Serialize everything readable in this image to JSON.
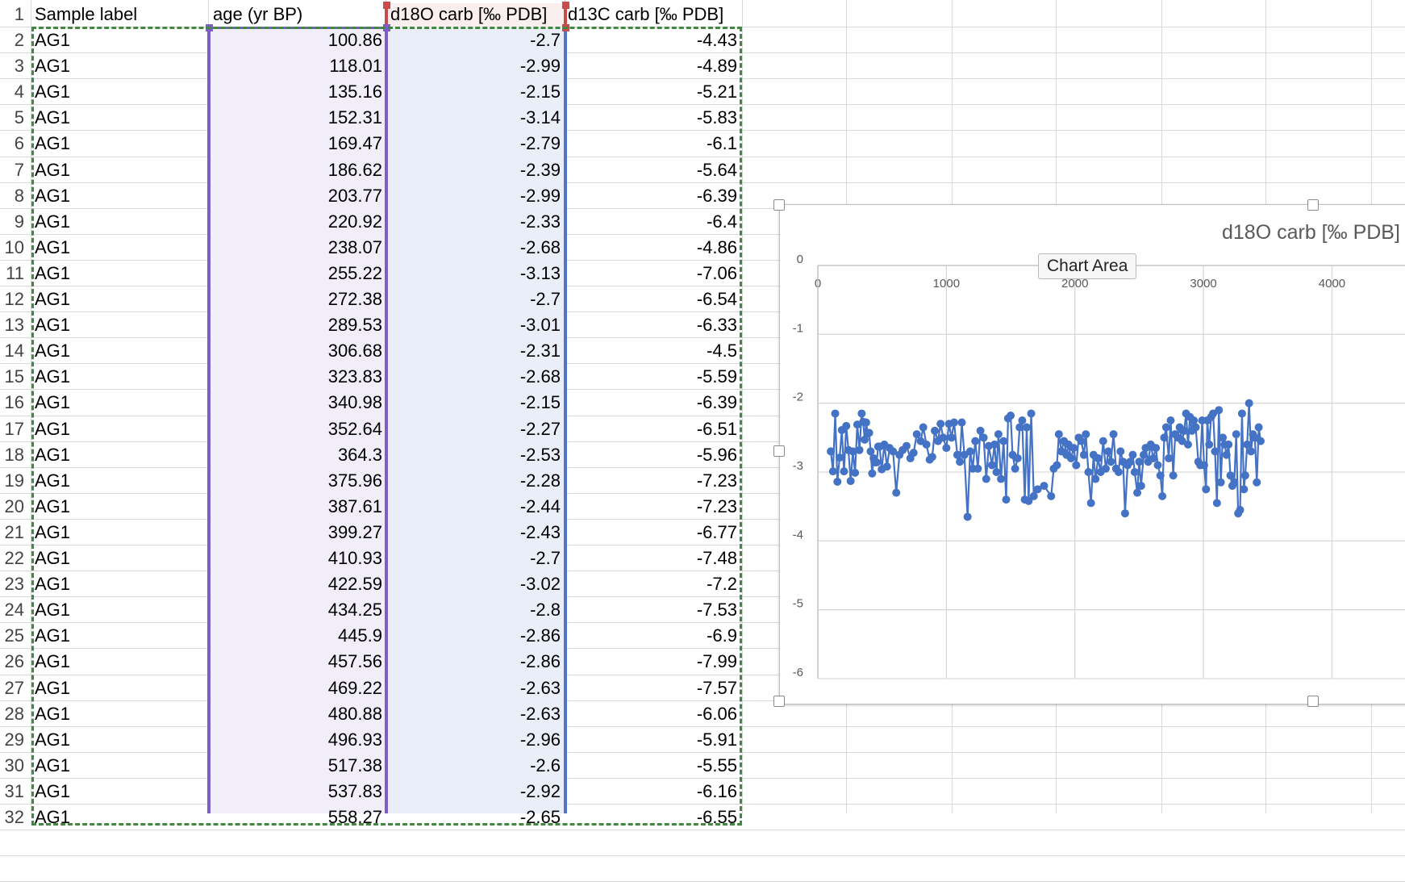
{
  "sheet": {
    "headers": {
      "a": "Sample label",
      "b": "age (yr BP)",
      "c": "d18O carb [‰ PDB]",
      "d": "d13C carb [‰ PDB]"
    },
    "rows": [
      {
        "n": "2",
        "a": "AG1",
        "b": "100.86",
        "c": "-2.7",
        "d": "-4.43"
      },
      {
        "n": "3",
        "a": "AG1",
        "b": "118.01",
        "c": "-2.99",
        "d": "-4.89"
      },
      {
        "n": "4",
        "a": "AG1",
        "b": "135.16",
        "c": "-2.15",
        "d": "-5.21"
      },
      {
        "n": "5",
        "a": "AG1",
        "b": "152.31",
        "c": "-3.14",
        "d": "-5.83"
      },
      {
        "n": "6",
        "a": "AG1",
        "b": "169.47",
        "c": "-2.79",
        "d": "-6.1"
      },
      {
        "n": "7",
        "a": "AG1",
        "b": "186.62",
        "c": "-2.39",
        "d": "-5.64"
      },
      {
        "n": "8",
        "a": "AG1",
        "b": "203.77",
        "c": "-2.99",
        "d": "-6.39"
      },
      {
        "n": "9",
        "a": "AG1",
        "b": "220.92",
        "c": "-2.33",
        "d": "-6.4"
      },
      {
        "n": "10",
        "a": "AG1",
        "b": "238.07",
        "c": "-2.68",
        "d": "-4.86"
      },
      {
        "n": "11",
        "a": "AG1",
        "b": "255.22",
        "c": "-3.13",
        "d": "-7.06"
      },
      {
        "n": "12",
        "a": "AG1",
        "b": "272.38",
        "c": "-2.7",
        "d": "-6.54"
      },
      {
        "n": "13",
        "a": "AG1",
        "b": "289.53",
        "c": "-3.01",
        "d": "-6.33"
      },
      {
        "n": "14",
        "a": "AG1",
        "b": "306.68",
        "c": "-2.31",
        "d": "-4.5"
      },
      {
        "n": "15",
        "a": "AG1",
        "b": "323.83",
        "c": "-2.68",
        "d": "-5.59"
      },
      {
        "n": "16",
        "a": "AG1",
        "b": "340.98",
        "c": "-2.15",
        "d": "-6.39"
      },
      {
        "n": "17",
        "a": "AG1",
        "b": "352.64",
        "c": "-2.27",
        "d": "-6.51"
      },
      {
        "n": "18",
        "a": "AG1",
        "b": "364.3",
        "c": "-2.53",
        "d": "-5.96"
      },
      {
        "n": "19",
        "a": "AG1",
        "b": "375.96",
        "c": "-2.28",
        "d": "-7.23"
      },
      {
        "n": "20",
        "a": "AG1",
        "b": "387.61",
        "c": "-2.44",
        "d": "-7.23"
      },
      {
        "n": "21",
        "a": "AG1",
        "b": "399.27",
        "c": "-2.43",
        "d": "-6.77"
      },
      {
        "n": "22",
        "a": "AG1",
        "b": "410.93",
        "c": "-2.7",
        "d": "-7.48"
      },
      {
        "n": "23",
        "a": "AG1",
        "b": "422.59",
        "c": "-3.02",
        "d": "-7.2"
      },
      {
        "n": "24",
        "a": "AG1",
        "b": "434.25",
        "c": "-2.8",
        "d": "-7.53"
      },
      {
        "n": "25",
        "a": "AG1",
        "b": "445.9",
        "c": "-2.86",
        "d": "-6.9"
      },
      {
        "n": "26",
        "a": "AG1",
        "b": "457.56",
        "c": "-2.86",
        "d": "-7.99"
      },
      {
        "n": "27",
        "a": "AG1",
        "b": "469.22",
        "c": "-2.63",
        "d": "-7.57"
      },
      {
        "n": "28",
        "a": "AG1",
        "b": "480.88",
        "c": "-2.63",
        "d": "-6.06"
      },
      {
        "n": "29",
        "a": "AG1",
        "b": "496.93",
        "c": "-2.96",
        "d": "-5.91"
      },
      {
        "n": "30",
        "a": "AG1",
        "b": "517.38",
        "c": "-2.6",
        "d": "-5.55"
      },
      {
        "n": "31",
        "a": "AG1",
        "b": "537.83",
        "c": "-2.92",
        "d": "-6.16"
      }
    ],
    "partial_row": {
      "n": "32",
      "a": "AG1",
      "b": "558.27",
      "c": "-2.65",
      "d": "-6.55"
    }
  },
  "chart": {
    "tooltip": "Chart Area",
    "colors": {
      "series": "#4472c4",
      "gridline": "#d9d9d9",
      "title": "#595959"
    }
  },
  "chart_data": {
    "type": "line",
    "title": "d18O carb [‰ PDB]",
    "xlabel": "",
    "ylabel": "",
    "x_ticks": [
      "0",
      "1000",
      "2000",
      "3000",
      "4000"
    ],
    "y_ticks": [
      "0",
      "-1",
      "-2",
      "-3",
      "-4",
      "-5",
      "-6"
    ],
    "xlim": [
      0,
      4750
    ],
    "ylim": [
      -6,
      0
    ],
    "x_axis_position": "top",
    "grid": true,
    "series": [
      {
        "values": [
          [
            100.86,
            -2.7
          ],
          [
            118.01,
            -2.99
          ],
          [
            135.16,
            -2.15
          ],
          [
            152.31,
            -3.14
          ],
          [
            169.47,
            -2.79
          ],
          [
            186.62,
            -2.39
          ],
          [
            203.77,
            -2.99
          ],
          [
            220.92,
            -2.33
          ],
          [
            238.07,
            -2.68
          ],
          [
            255.22,
            -3.13
          ],
          [
            272.38,
            -2.7
          ],
          [
            289.53,
            -3.01
          ],
          [
            306.68,
            -2.31
          ],
          [
            323.83,
            -2.68
          ],
          [
            340.98,
            -2.15
          ],
          [
            352.64,
            -2.27
          ],
          [
            364.3,
            -2.53
          ],
          [
            375.96,
            -2.28
          ],
          [
            387.61,
            -2.44
          ],
          [
            399.27,
            -2.43
          ],
          [
            410.93,
            -2.7
          ],
          [
            422.59,
            -3.02
          ],
          [
            434.25,
            -2.8
          ],
          [
            445.9,
            -2.86
          ],
          [
            457.56,
            -2.86
          ],
          [
            469.22,
            -2.63
          ],
          [
            480.88,
            -2.63
          ],
          [
            496.93,
            -2.96
          ],
          [
            517.38,
            -2.6
          ],
          [
            537.83,
            -2.92
          ],
          [
            558.27,
            -2.65
          ],
          [
            585,
            -2.7
          ],
          [
            610,
            -3.3
          ],
          [
            635,
            -2.75
          ],
          [
            660,
            -2.68
          ],
          [
            690,
            -2.62
          ],
          [
            720,
            -2.8
          ],
          [
            745,
            -2.72
          ],
          [
            770,
            -2.45
          ],
          [
            800,
            -2.55
          ],
          [
            820,
            -2.35
          ],
          [
            845,
            -2.6
          ],
          [
            870,
            -2.82
          ],
          [
            890,
            -2.78
          ],
          [
            910,
            -2.4
          ],
          [
            935,
            -2.55
          ],
          [
            955,
            -2.3
          ],
          [
            975,
            -2.5
          ],
          [
            1000,
            -2.65
          ],
          [
            1020,
            -2.3
          ],
          [
            1040,
            -2.5
          ],
          [
            1060,
            -2.28
          ],
          [
            1085,
            -2.75
          ],
          [
            1105,
            -2.85
          ],
          [
            1120,
            -2.28
          ],
          [
            1140,
            -2.75
          ],
          [
            1165,
            -3.65
          ],
          [
            1185,
            -2.7
          ],
          [
            1205,
            -2.95
          ],
          [
            1225,
            -2.55
          ],
          [
            1245,
            -2.95
          ],
          [
            1265,
            -2.4
          ],
          [
            1290,
            -2.5
          ],
          [
            1310,
            -3.1
          ],
          [
            1330,
            -2.62
          ],
          [
            1355,
            -2.9
          ],
          [
            1375,
            -2.6
          ],
          [
            1390,
            -3.0
          ],
          [
            1405,
            -2.45
          ],
          [
            1425,
            -3.1
          ],
          [
            1445,
            -2.55
          ],
          [
            1465,
            -3.4
          ],
          [
            1480,
            -2.22
          ],
          [
            1500,
            -2.18
          ],
          [
            1515,
            -2.75
          ],
          [
            1535,
            -2.95
          ],
          [
            1555,
            -2.8
          ],
          [
            1570,
            -2.35
          ],
          [
            1590,
            -2.25
          ],
          [
            1610,
            -3.4
          ],
          [
            1625,
            -2.35
          ],
          [
            1640,
            -3.42
          ],
          [
            1660,
            -2.15
          ],
          [
            1680,
            -3.35
          ],
          [
            1710,
            -3.25
          ],
          [
            1760,
            -3.2
          ],
          [
            1815,
            -3.35
          ],
          [
            1835,
            -2.95
          ],
          [
            1860,
            -2.9
          ],
          [
            1875,
            -2.45
          ],
          [
            1895,
            -2.7
          ],
          [
            1915,
            -2.55
          ],
          [
            1935,
            -2.75
          ],
          [
            1950,
            -2.6
          ],
          [
            1970,
            -2.8
          ],
          [
            1990,
            -2.65
          ],
          [
            2010,
            -2.9
          ],
          [
            2030,
            -2.5
          ],
          [
            2050,
            -2.55
          ],
          [
            2070,
            -2.75
          ],
          [
            2085,
            -2.45
          ],
          [
            2105,
            -3.0
          ],
          [
            2125,
            -3.45
          ],
          [
            2145,
            -2.75
          ],
          [
            2160,
            -3.1
          ],
          [
            2180,
            -2.8
          ],
          [
            2200,
            -3.0
          ],
          [
            2220,
            -2.55
          ],
          [
            2240,
            -2.95
          ],
          [
            2260,
            -2.7
          ],
          [
            2280,
            -2.85
          ],
          [
            2300,
            -2.45
          ],
          [
            2320,
            -2.95
          ],
          [
            2340,
            -3.0
          ],
          [
            2355,
            -2.7
          ],
          [
            2375,
            -2.85
          ],
          [
            2390,
            -3.6
          ],
          [
            2410,
            -2.9
          ],
          [
            2430,
            -2.85
          ],
          [
            2450,
            -2.75
          ],
          [
            2465,
            -3.0
          ],
          [
            2485,
            -3.3
          ],
          [
            2500,
            -2.85
          ],
          [
            2515,
            -3.2
          ],
          [
            2535,
            -2.75
          ],
          [
            2550,
            -2.65
          ],
          [
            2570,
            -2.85
          ],
          [
            2590,
            -2.6
          ],
          [
            2610,
            -2.8
          ],
          [
            2630,
            -2.65
          ],
          [
            2645,
            -2.9
          ],
          [
            2665,
            -3.05
          ],
          [
            2680,
            -3.35
          ],
          [
            2695,
            -2.5
          ],
          [
            2710,
            -2.35
          ],
          [
            2730,
            -2.8
          ],
          [
            2745,
            -2.25
          ],
          [
            2765,
            -3.05
          ],
          [
            2780,
            -2.45
          ],
          [
            2800,
            -2.5
          ],
          [
            2815,
            -2.35
          ],
          [
            2835,
            -2.55
          ],
          [
            2850,
            -2.4
          ],
          [
            2865,
            -2.15
          ],
          [
            2880,
            -2.6
          ],
          [
            2895,
            -2.2
          ],
          [
            2910,
            -2.4
          ],
          [
            2925,
            -2.25
          ],
          [
            2940,
            -2.35
          ],
          [
            2960,
            -2.85
          ],
          [
            2975,
            -2.9
          ],
          [
            2990,
            -2.25
          ],
          [
            3005,
            -2.9
          ],
          [
            3020,
            -3.25
          ],
          [
            3030,
            -2.25
          ],
          [
            3045,
            -2.6
          ],
          [
            3060,
            -2.2
          ],
          [
            3075,
            -2.15
          ],
          [
            3090,
            -2.7
          ],
          [
            3105,
            -3.45
          ],
          [
            3120,
            -2.1
          ],
          [
            3135,
            -3.15
          ],
          [
            3150,
            -2.5
          ],
          [
            3165,
            -2.6
          ],
          [
            3180,
            -2.75
          ],
          [
            3195,
            -2.6
          ],
          [
            3210,
            -3.05
          ],
          [
            3225,
            -3.2
          ],
          [
            3240,
            -3.15
          ],
          [
            3255,
            -2.45
          ],
          [
            3270,
            -3.6
          ],
          [
            3285,
            -3.55
          ],
          [
            3300,
            -2.15
          ],
          [
            3315,
            -3.25
          ],
          [
            3325,
            -3.05
          ],
          [
            3340,
            -2.6
          ],
          [
            3355,
            -2.0
          ],
          [
            3370,
            -2.7
          ],
          [
            3385,
            -2.45
          ],
          [
            3400,
            -2.5
          ],
          [
            3415,
            -3.15
          ],
          [
            3430,
            -2.35
          ],
          [
            3445,
            -2.55
          ]
        ]
      }
    ]
  }
}
